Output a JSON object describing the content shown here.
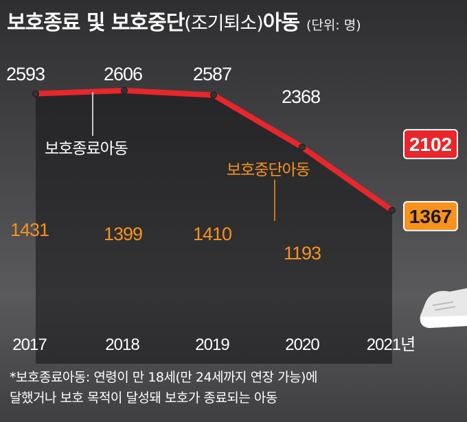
{
  "header": {
    "title_main": "보호종료 및 보호중단",
    "title_paren": "(조기퇴소)",
    "title_end": "아동",
    "unit": "(단위: 명)"
  },
  "chart_data": {
    "type": "line",
    "title": "보호종료 및 보호중단(조기퇴소) 아동",
    "unit": "(단위: 명)",
    "categories": [
      "2017",
      "2018",
      "2019",
      "2020",
      "2021년"
    ],
    "ylim": [
      1100,
      2700
    ],
    "series": [
      {
        "name": "보호종료아동",
        "values": [
          2593,
          2606,
          2587,
          2368,
          2102
        ],
        "color": "#e8262b"
      },
      {
        "name": "보호중단아동",
        "values": [
          1431,
          1399,
          1410,
          1193,
          1367
        ],
        "color": "#f7921e"
      }
    ],
    "grid": false
  },
  "footnote": {
    "line1": "*보호종료아동: 연령이 만 18세(만 24세까지 연장 가능)에",
    "line2": "달했거나 보호 목적이 달성돼 보호가 종료되는 아동"
  },
  "colors": {
    "red": "#e8262b",
    "orange": "#f7921e",
    "text": "#ffffff"
  }
}
